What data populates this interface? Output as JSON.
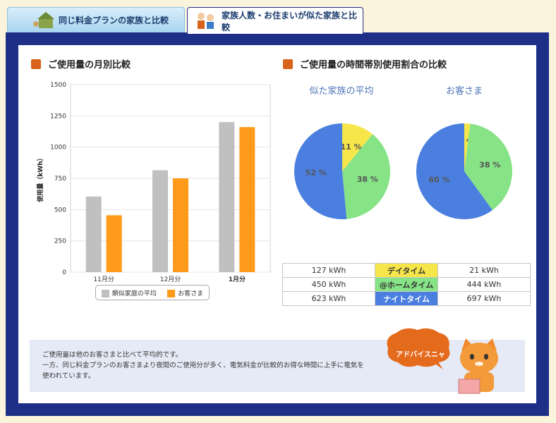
{
  "tabs": [
    {
      "label": "同じ料金プランの家族と比較",
      "active": false
    },
    {
      "label": "家族人数・お住まいが似た家族と比較",
      "active": true
    }
  ],
  "sections": {
    "monthly_title": "ご使用量の月別比較",
    "timeband_title": "ご使用量の時間帯別使用割合の比較"
  },
  "pies": {
    "left_title": "似た家族の平均",
    "right_title": "お客さま"
  },
  "usage_table": [
    {
      "similar": "127 kWh",
      "band": "デイタイム",
      "customer": "21 kWh",
      "color": "#f7e64a"
    },
    {
      "similar": "450 kWh",
      "band": "@ホームタイム",
      "customer": "444 kWh",
      "color": "#86e386"
    },
    {
      "similar": "623 kWh",
      "band": "ナイトタイム",
      "customer": "697 kWh",
      "color": "#4a7fe0"
    }
  ],
  "note": {
    "line1": "ご使用量は他のお客さまと比べて平均的です。",
    "line2": "一方、同じ料金プランのお客さまより夜間のご使用分が多く、電気料金が比較的お得な時間に上手に電気を",
    "line3": "使われています。"
  },
  "advisor": {
    "bubble": "アドバイスニャ"
  },
  "colors": {
    "frame": "#1e2f88",
    "similar": "#c0c0c0",
    "customer": "#ff9a1a",
    "day": "#f7e64a",
    "home": "#86e386",
    "night": "#4a7fe0"
  },
  "chart_data": [
    {
      "type": "bar",
      "categories": [
        "11月分",
        "12月分",
        "1月分"
      ],
      "series": [
        {
          "name": "類似家庭の平均",
          "values": [
            605,
            815,
            1200
          ],
          "color": "#c0c0c0"
        },
        {
          "name": "お客さま",
          "values": [
            455,
            750,
            1160
          ],
          "color": "#ff9a1a"
        }
      ],
      "ylabel": "使用量（kWh）",
      "yticks": [
        0,
        250,
        500,
        750,
        1000,
        1250,
        1500
      ],
      "ylim": [
        0,
        1500
      ],
      "grid": true,
      "legend": "bottom"
    },
    {
      "type": "pie",
      "title": "似た家族の平均",
      "labels": [
        "デイタイム",
        "@ホームタイム",
        "ナイトタイム"
      ],
      "values": [
        11,
        38,
        52
      ],
      "value_labels": [
        "11 %",
        "38 %",
        "52 %"
      ],
      "colors": [
        "#f7e64a",
        "#86e386",
        "#4a7fe0"
      ]
    },
    {
      "type": "pie",
      "title": "お客さま",
      "labels": [
        "デイタイム",
        "@ホームタイム",
        "ナイトタイム"
      ],
      "values": [
        2,
        38,
        60
      ],
      "value_labels": [
        "2 %",
        "38 %",
        "60 %"
      ],
      "colors": [
        "#f7e64a",
        "#86e386",
        "#4a7fe0"
      ]
    }
  ]
}
